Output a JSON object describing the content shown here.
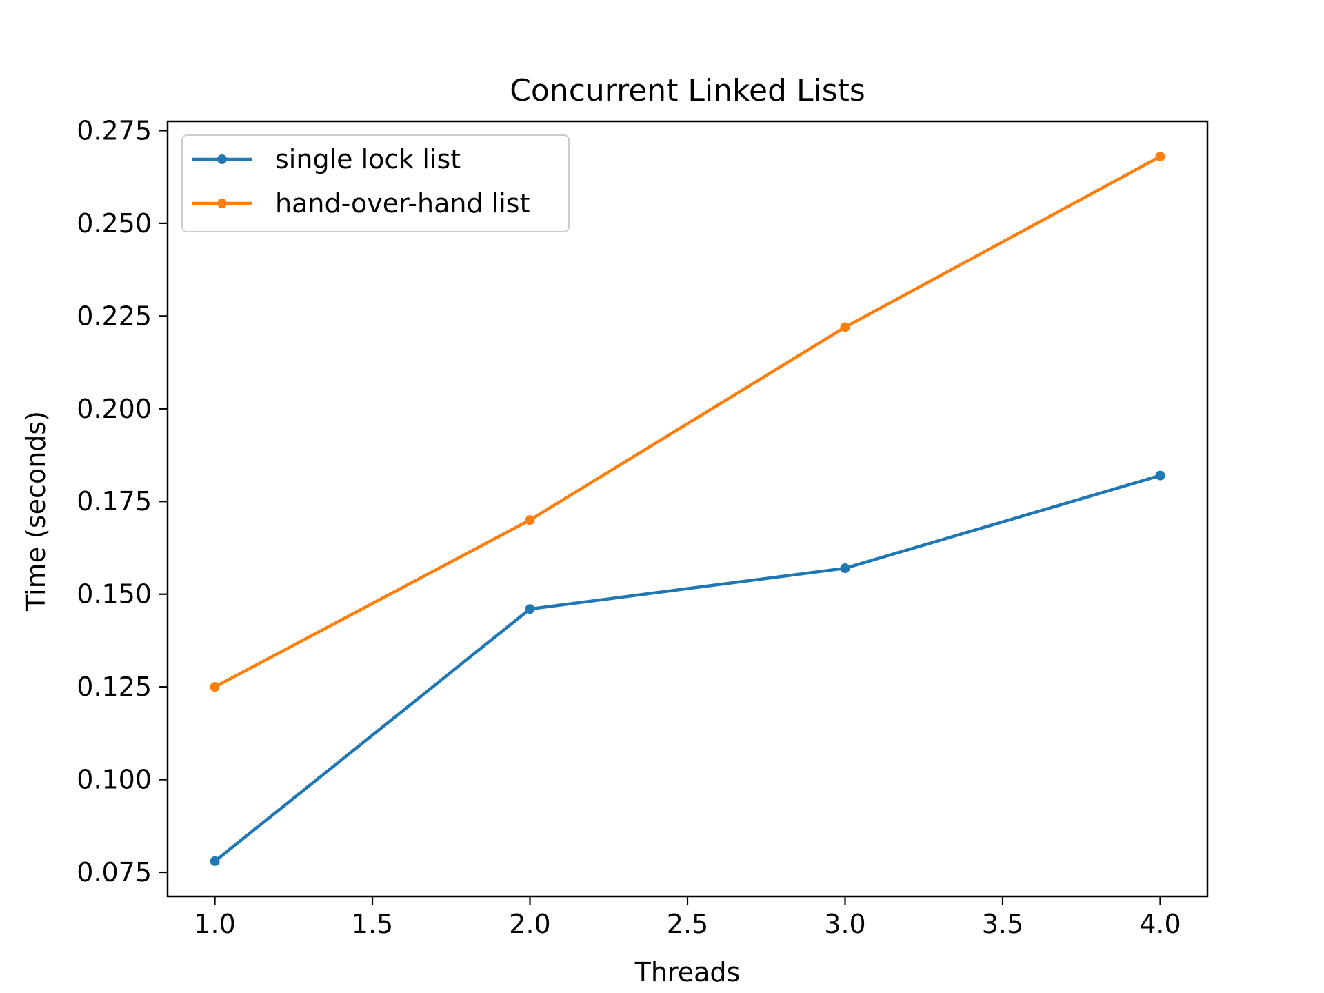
{
  "chart_data": {
    "type": "line",
    "title": "Concurrent Linked Lists",
    "xlabel": "Threads",
    "ylabel": "Time (seconds)",
    "xlim": [
      0.85,
      4.15
    ],
    "ylim": [
      0.0685,
      0.2775
    ],
    "xticks": [
      "1.0",
      "1.5",
      "2.0",
      "2.5",
      "3.0",
      "3.5",
      "4.0"
    ],
    "yticks": [
      "0.075",
      "0.100",
      "0.125",
      "0.150",
      "0.175",
      "0.200",
      "0.225",
      "0.250",
      "0.275"
    ],
    "grid": false,
    "legend_position": "upper-left",
    "series": [
      {
        "name": "single lock list",
        "color": "#1f77b4",
        "marker": "circle",
        "x": [
          1.0,
          2.0,
          3.0,
          4.0
        ],
        "y": [
          0.078,
          0.146,
          0.157,
          0.182
        ]
      },
      {
        "name": "hand-over-hand list",
        "color": "#ff7f0e",
        "marker": "circle",
        "x": [
          1.0,
          2.0,
          3.0,
          4.0
        ],
        "y": [
          0.125,
          0.17,
          0.222,
          0.268
        ]
      }
    ]
  }
}
